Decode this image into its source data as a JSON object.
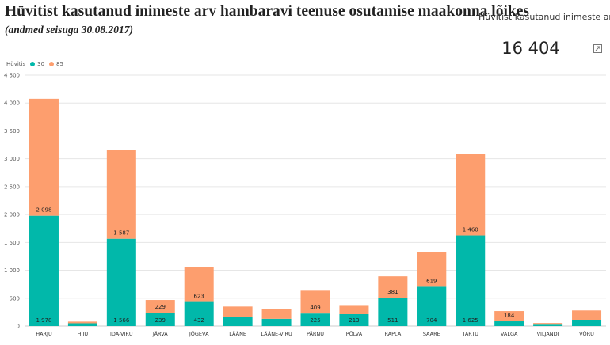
{
  "header": {
    "title": "Hüvitist kasutanud inimeste arv hambaravi teenuse osutamise maakonna lõikes",
    "subtitle": "(andmed seisuga 30.08.2017)"
  },
  "kpi": {
    "label": "Hüvitist kasutanud inimeste arv",
    "value": "16 404",
    "icon": "expand-icon"
  },
  "chart_data": {
    "type": "bar",
    "stacked": true,
    "legend_title": "Hüvitis",
    "legend_position": "top-left",
    "grid": true,
    "ylim": [
      0,
      4500
    ],
    "yticks": [
      0,
      500,
      1000,
      1500,
      2000,
      2500,
      3000,
      3500,
      4000,
      4500
    ],
    "ytick_labels": [
      "0",
      "500",
      "1 000",
      "1 500",
      "2 000",
      "2 500",
      "3 000",
      "3 500",
      "4 000",
      "4 500"
    ],
    "categories": [
      "HARJU",
      "HIIU",
      "IDA-VIRU",
      "JÄRVA",
      "JÕGEVA",
      "LÄÄNE",
      "LÄÄNE-VIRU",
      "PÄRNU",
      "PÕLVA",
      "RAPLA",
      "SAARE",
      "TARTU",
      "VALGA",
      "VILJANDI",
      "VÕRU"
    ],
    "series": [
      {
        "name": "30",
        "color": "#01B8AA",
        "values": [
          1978,
          50,
          1566,
          239,
          432,
          160,
          130,
          225,
          213,
          511,
          704,
          1625,
          85,
          25,
          110
        ],
        "labels": [
          "1 978",
          "",
          "1 566",
          "239",
          "432",
          "",
          "",
          "225",
          "213",
          "511",
          "704",
          "1 625",
          "",
          "",
          ""
        ]
      },
      {
        "name": "85",
        "color": "#FD9E6E",
        "values": [
          2098,
          30,
          1587,
          229,
          623,
          190,
          170,
          409,
          150,
          381,
          619,
          1460,
          184,
          30,
          170
        ],
        "labels": [
          "2 098",
          "",
          "1 587",
          "229",
          "623",
          "",
          "",
          "409",
          "",
          "381",
          "619",
          "1 460",
          "184",
          "",
          ""
        ]
      }
    ]
  }
}
